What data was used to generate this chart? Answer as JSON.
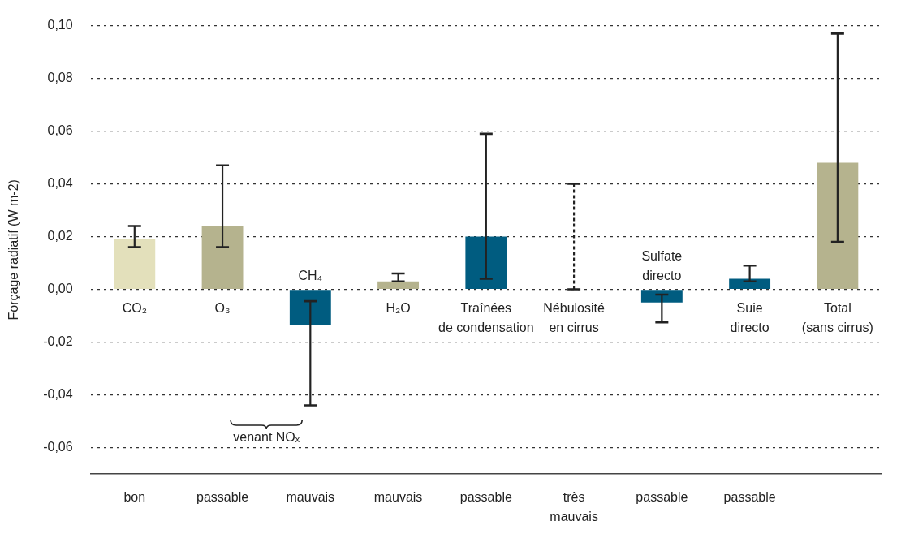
{
  "chart_data": {
    "type": "bar",
    "ylabel": "Forçage radiatif (W m-2)",
    "categories": [
      "CO₂",
      "O₃",
      "CH₄",
      "H₂O",
      "Traînées\nde condensation",
      "Nébulosité\nen cirrus",
      "Sulfate\ndirecto",
      "Suie\ndirecto",
      "Total\n(sans cirrus)"
    ],
    "series": [
      {
        "type": "bar",
        "values": [
          0.019,
          0.024,
          -0.0135,
          0.003,
          0.02,
          null,
          -0.005,
          0.004,
          0.048
        ],
        "colors": [
          "#e3e0bb",
          "#b5b38e",
          "#005c80",
          "#b5b38e",
          "#005c80",
          "#005c80",
          "#005c80",
          "#005c80",
          "#b5b38e"
        ],
        "errors": [
          [
            0.016,
            0.024
          ],
          [
            0.016,
            0.047
          ],
          [
            -0.044,
            -0.0045
          ],
          [
            0.003,
            0.006
          ],
          [
            0.004,
            0.059
          ],
          null,
          [
            -0.0125,
            -0.002
          ],
          [
            0.003,
            0.009
          ],
          [
            0.018,
            0.097
          ]
        ]
      },
      {
        "type": "bar",
        "values": [
          null,
          null,
          null,
          null,
          null,
          0,
          null,
          null,
          null
        ],
        "errors": [
          null,
          null,
          null,
          null,
          null,
          [
            0,
            0.04
          ],
          null,
          null,
          null
        ],
        "line_style": "dashed"
      }
    ],
    "ylim": [
      -0.07,
      0.1
    ],
    "yticks": [
      {
        "value": -0.06,
        "label": "-0,06"
      },
      {
        "value": -0.04,
        "label": "-0,04"
      },
      {
        "value": -0.02,
        "label": "-0,02"
      },
      {
        "value": 0,
        "label": "0,00"
      },
      {
        "value": 0.02,
        "label": "0,02"
      },
      {
        "value": 0.04,
        "label": "0,04"
      },
      {
        "value": 0.06,
        "label": "0,06"
      },
      {
        "value": 0.08,
        "label": "0,08"
      },
      {
        "value": 0.1,
        "label": "0,10"
      }
    ],
    "grid": "y",
    "legend": false,
    "annotations": [
      "venant NOₓ",
      "bon",
      "passable",
      "mauvais",
      "mauvais",
      "passable",
      "très\nmauvais",
      "passable",
      "passable"
    ]
  }
}
